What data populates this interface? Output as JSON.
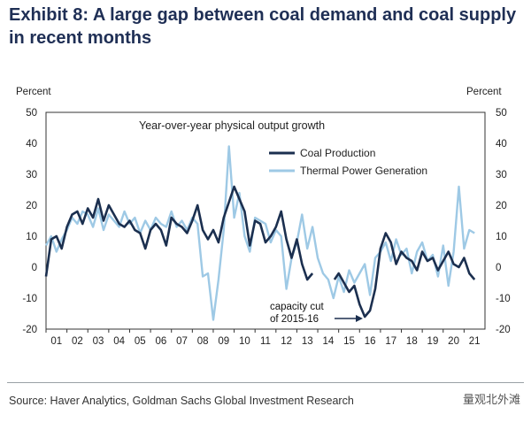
{
  "header": {
    "title": "Exhibit 8: A large gap between coal demand and coal supply in recent months"
  },
  "footer": {
    "source": "Source: Haver Analytics, Goldman Sachs Global Investment Research",
    "watermark": "量观北外滩"
  },
  "chart_data": {
    "type": "line",
    "title": "Year-over-year physical output growth",
    "ylabel_left": "Percent",
    "ylabel_right": "Percent",
    "ylim": [
      -20,
      50
    ],
    "yticks": [
      50,
      40,
      30,
      20,
      10,
      0,
      -10,
      -20
    ],
    "xlim": [
      2001,
      2022
    ],
    "xtick_labels": [
      "01",
      "02",
      "03",
      "04",
      "05",
      "06",
      "07",
      "08",
      "09",
      "10",
      "11",
      "12",
      "13",
      "14",
      "15",
      "16",
      "17",
      "18",
      "19",
      "20",
      "21"
    ],
    "legend_position": "top-right",
    "grid": false,
    "annotation": {
      "text_line1": "capacity cut",
      "text_line2": "of 2015-16",
      "x": 2016.3,
      "y": -16
    },
    "series": [
      {
        "name": "Coal Production",
        "color": "#1b2f4f",
        "x": [
          2001,
          2001.25,
          2001.5,
          2001.75,
          2002,
          2002.25,
          2002.5,
          2002.75,
          2003,
          2003.25,
          2003.5,
          2003.75,
          2004,
          2004.25,
          2004.5,
          2004.75,
          2005,
          2005.25,
          2005.5,
          2005.75,
          2006,
          2006.25,
          2006.5,
          2006.75,
          2007,
          2007.25,
          2007.5,
          2007.75,
          2008,
          2008.25,
          2008.5,
          2008.75,
          2009,
          2009.25,
          2009.5,
          2009.75,
          2010,
          2010.25,
          2010.5,
          2010.75,
          2011,
          2011.25,
          2011.5,
          2011.75,
          2012,
          2012.25,
          2012.5,
          2012.75,
          2013,
          2013.25,
          2013.5,
          2013.75,
          null,
          2014.8,
          2015,
          2015.25,
          2015.5,
          2015.75,
          2016,
          2016.25,
          2016.5,
          2016.75,
          2017,
          2017.25,
          2017.5,
          2017.75,
          2018,
          2018.25,
          2018.5,
          2018.75,
          2019,
          2019.25,
          2019.5,
          2019.75,
          2020,
          2020.25,
          2020.5,
          2020.75,
          2021,
          2021.25,
          2021.5
        ],
        "y": [
          -3,
          9,
          10,
          6,
          13,
          17,
          18,
          14,
          19,
          16,
          22,
          15,
          20,
          17,
          14,
          13,
          15,
          12,
          11,
          6,
          12,
          14,
          12,
          7,
          16,
          14,
          13,
          11,
          15,
          20,
          12,
          9,
          12,
          8,
          16,
          21,
          26,
          22,
          18,
          7,
          15,
          14,
          8,
          10,
          13,
          18,
          9,
          3,
          9,
          1,
          -4,
          -2,
          null,
          -4,
          -2,
          -5,
          -8,
          -6,
          -12,
          -16,
          -14,
          -7,
          6,
          11,
          8,
          1,
          5,
          3,
          2,
          -1,
          5,
          2,
          3,
          -1,
          2,
          5,
          1,
          0,
          3,
          -2,
          -4
        ]
      },
      {
        "name": "Thermal Power Generation",
        "color": "#9ec9e5",
        "x": [
          2001,
          2001.25,
          2001.5,
          2001.75,
          2002,
          2002.25,
          2002.5,
          2002.75,
          2003,
          2003.25,
          2003.5,
          2003.75,
          2004,
          2004.25,
          2004.5,
          2004.75,
          2005,
          2005.25,
          2005.5,
          2005.75,
          2006,
          2006.25,
          2006.5,
          2006.75,
          2007,
          2007.25,
          2007.5,
          2007.75,
          2008,
          2008.25,
          2008.5,
          2008.75,
          2009,
          2009.25,
          2009.5,
          2009.75,
          2010,
          2010.25,
          2010.5,
          2010.75,
          2011,
          2011.25,
          2011.5,
          2011.75,
          2012,
          2012.25,
          2012.5,
          2012.75,
          2013,
          2013.25,
          2013.5,
          2013.75,
          2014,
          2014.25,
          2014.5,
          2014.75,
          2015,
          2015.25,
          2015.5,
          2015.75,
          2016,
          2016.25,
          2016.5,
          2016.75,
          2017,
          2017.25,
          2017.5,
          2017.75,
          2018,
          2018.25,
          2018.5,
          2018.75,
          2019,
          2019.25,
          2019.5,
          2019.75,
          2020,
          2020.25,
          2020.5,
          2020.75,
          2021,
          2021.25,
          2021.5
        ],
        "y": [
          7,
          10,
          5,
          9,
          12,
          16,
          14,
          18,
          17,
          13,
          19,
          12,
          17,
          15,
          13,
          18,
          14,
          16,
          11,
          15,
          12,
          16,
          14,
          13,
          18,
          13,
          15,
          12,
          16,
          14,
          -3,
          -2,
          -17,
          -4,
          12,
          39,
          16,
          24,
          10,
          5,
          16,
          15,
          14,
          8,
          12,
          10,
          -7,
          3,
          8,
          17,
          6,
          13,
          3,
          -2,
          -4,
          -10,
          -3,
          -8,
          -1,
          -5,
          -2,
          1,
          -9,
          3,
          5,
          8,
          2,
          9,
          4,
          6,
          -2,
          5,
          8,
          2,
          4,
          -3,
          7,
          -6,
          5,
          26,
          6,
          12,
          11
        ]
      }
    ]
  }
}
